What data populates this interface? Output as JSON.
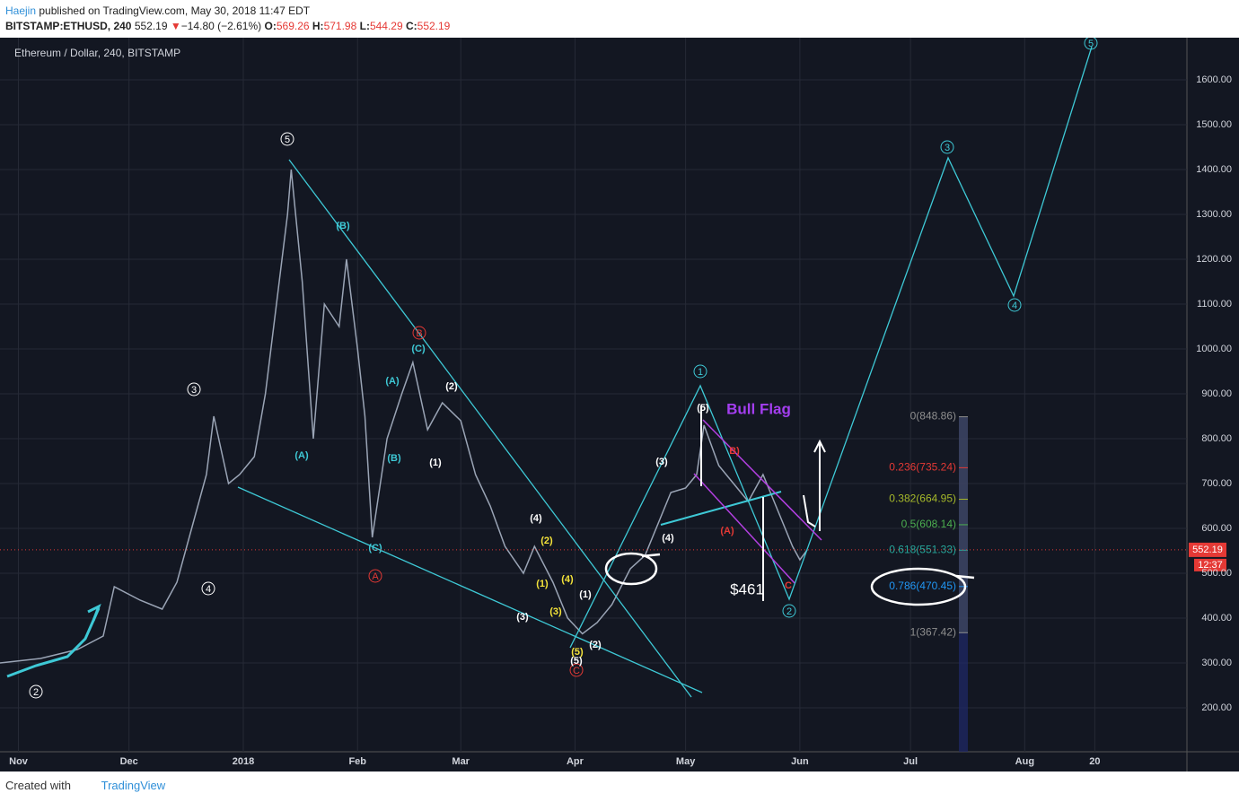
{
  "header": {
    "author": "Haejin",
    "published": "published on TradingView.com, May 30, 2018 11:47 EDT",
    "symbol": "BITSTAMP:ETHUSD, 240",
    "last": "552.19",
    "arrow": "▼",
    "change": "−14.80 (−2.61%)",
    "o_label": "O:",
    "o": "569.26",
    "h_label": "H:",
    "h": "571.98",
    "l_label": "L:",
    "l": "544.29",
    "c_label": "C:",
    "c": "552.19"
  },
  "footer": {
    "created": "Created with",
    "brand": "TradingView"
  },
  "chart_data": {
    "type": "line",
    "title": "Ethereum / Dollar, 240, BITSTAMP",
    "x": [
      -66,
      -55,
      -45,
      -38,
      -35,
      -28,
      -22,
      -18,
      -14,
      -10,
      -8,
      -4,
      -1,
      3,
      6,
      9,
      12,
      13,
      16,
      19,
      22,
      26,
      28,
      31,
      33,
      35,
      39,
      43,
      46,
      50,
      54,
      59,
      63,
      67,
      71,
      76,
      79,
      84,
      88,
      92,
      96,
      100,
      105,
      109,
      113,
      116,
      120,
      123,
      125,
      129,
      133,
      137,
      141,
      145,
      149,
      151,
      153
    ],
    "series": [
      {
        "color": "#9aa4b5",
        "values": [
          300,
          310,
          330,
          360,
          470,
          440,
          420,
          480,
          600,
          720,
          850,
          700,
          720,
          760,
          900,
          1100,
          1300,
          1400,
          1150,
          800,
          1100,
          1050,
          1200,
          1000,
          850,
          580,
          800,
          900,
          970,
          820,
          880,
          840,
          720,
          650,
          560,
          500,
          560,
          480,
          400,
          365,
          390,
          430,
          510,
          540,
          620,
          680,
          690,
          720,
          830,
          740,
          700,
          660,
          720,
          640,
          560,
          530,
          552.19
        ]
      }
    ],
    "xlim": [
      -66,
      256
    ],
    "ylim": [
      102,
      1694
    ],
    "xticks": [
      {
        "value": -61,
        "label": "Nov"
      },
      {
        "value": -31,
        "label": "Dec"
      },
      {
        "value": 0,
        "label": "2018"
      },
      {
        "value": 31,
        "label": "Feb"
      },
      {
        "value": 59,
        "label": "Mar"
      },
      {
        "value": 90,
        "label": "Apr"
      },
      {
        "value": 120,
        "label": "May"
      },
      {
        "value": 151,
        "label": "Jun"
      },
      {
        "value": 181,
        "label": "Jul"
      },
      {
        "value": 212,
        "label": "Aug"
      },
      {
        "value": 231,
        "label": "20"
      }
    ],
    "yticks": [
      {
        "value": 200,
        "label": "200.00"
      },
      {
        "value": 300,
        "label": "300.00"
      },
      {
        "value": 400,
        "label": "400.00"
      },
      {
        "value": 500,
        "label": "500.00"
      },
      {
        "value": 600,
        "label": "600.00"
      },
      {
        "value": 700,
        "label": "700.00"
      },
      {
        "value": 800,
        "label": "800.00"
      },
      {
        "value": 900,
        "label": "900.00"
      },
      {
        "value": 1000,
        "label": "1000.00"
      },
      {
        "value": 1100,
        "label": "1100.00"
      },
      {
        "value": 1200,
        "label": "1200.00"
      },
      {
        "value": 1300,
        "label": "1300.00"
      },
      {
        "value": 1400,
        "label": "1400.00"
      },
      {
        "value": 1500,
        "label": "1500.00"
      },
      {
        "value": 1600,
        "label": "1600.00"
      }
    ],
    "grid": true,
    "last_price": {
      "value": 552.19,
      "label": "552.19"
    },
    "countdown": "12:37",
    "fib_levels": [
      {
        "value": 848.86,
        "label": "0(848.86)",
        "color": "#8f8f8f"
      },
      {
        "value": 735.24,
        "label": "0.236(735.24)",
        "color": "#e53935"
      },
      {
        "value": 664.95,
        "label": "0.382(664.95)",
        "color": "#a5b82a"
      },
      {
        "value": 608.14,
        "label": "0.5(608.14)",
        "color": "#4caf50"
      },
      {
        "value": 551.33,
        "label": "0.618(551.33)",
        "color": "#26a69a"
      },
      {
        "value": 470.45,
        "label": "0.786(470.45)",
        "color": "#2196f3"
      },
      {
        "value": 367.42,
        "label": "1(367.42)",
        "color": "#8f8f8f"
      }
    ],
    "annotations": [
      "5",
      "3",
      "4",
      "2",
      "1",
      "2",
      "3",
      "4",
      "5",
      "B",
      "A",
      "C",
      "(B)",
      "(C)",
      "(A)",
      "(A)",
      "(B)",
      "(C)",
      "(2)",
      "(1)",
      "(4)",
      "(3)",
      "(1)",
      "(2)",
      "(5)",
      "(3)",
      "(4)",
      "(5)",
      "(2)",
      "(1)",
      "(4)",
      "(3)",
      "(5)",
      "B)",
      "(A)",
      "C",
      "Bull Flag",
      "$461"
    ]
  }
}
